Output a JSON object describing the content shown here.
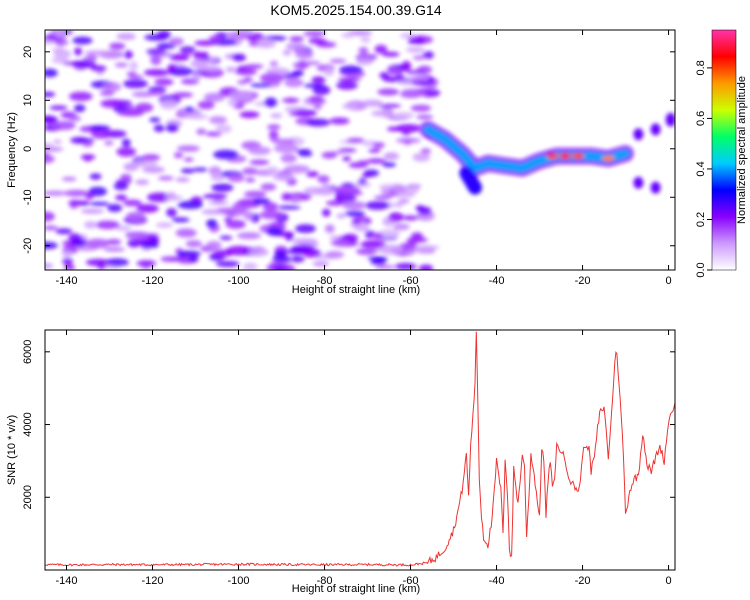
{
  "title": "KOM5.2025.154.00.39.G14",
  "chart_data": [
    {
      "type": "heatmap",
      "xlabel": "Height of straight line (km)",
      "ylabel": "Frequency (Hz)",
      "xlim": [
        -145,
        1.5
      ],
      "ylim": [
        -25,
        24.5
      ],
      "xticks": [
        -140,
        -120,
        -100,
        -80,
        -60,
        -40,
        -20,
        0
      ],
      "yticks": [
        -20,
        -10,
        0,
        10,
        20
      ],
      "colorbar": {
        "label": "Normalized spectral amplitude",
        "range": [
          0,
          0.95
        ],
        "ticks": [
          "0.0",
          "0.2",
          "0.4",
          "0.6",
          "0.8"
        ],
        "colors": [
          "#ffffff",
          "#cc99ff",
          "#8800ff",
          "#0000ff",
          "#00ccff",
          "#00ff66",
          "#ccff00",
          "#ff9900",
          "#ff0000",
          "#ff33aa"
        ]
      },
      "features": {
        "noise_region_x": [
          -145,
          -55
        ],
        "signal_track": [
          {
            "x": -56,
            "f": 4
          },
          {
            "x": -52,
            "f": 2
          },
          {
            "x": -48,
            "f": -1
          },
          {
            "x": -45,
            "f": -4
          },
          {
            "x": -42,
            "f": -3
          },
          {
            "x": -38,
            "f": -3.5
          },
          {
            "x": -34,
            "f": -4
          },
          {
            "x": -30,
            "f": -2.5
          },
          {
            "x": -26,
            "f": -1.5
          },
          {
            "x": -22,
            "f": -1.5
          },
          {
            "x": -18,
            "f": -1.5
          },
          {
            "x": -14,
            "f": -2
          },
          {
            "x": -10,
            "f": -1
          }
        ],
        "signal_branch": [
          {
            "x": -47,
            "f": -5
          },
          {
            "x": -45,
            "f": -8
          }
        ],
        "hot_spots": [
          {
            "x": -27,
            "f": -1.5,
            "amp": 0.85
          },
          {
            "x": -24,
            "f": -1.5,
            "amp": 0.9
          },
          {
            "x": -21,
            "f": -1.5,
            "amp": 0.85
          },
          {
            "x": -14,
            "f": -2,
            "amp": 0.8
          }
        ]
      }
    },
    {
      "type": "line",
      "xlabel": "Height of straight line (km)",
      "ylabel": "SNR (10 * v/v)",
      "xlim": [
        -145,
        1.5
      ],
      "ylim": [
        0,
        6600
      ],
      "xticks": [
        -140,
        -120,
        -100,
        -80,
        -60,
        -40,
        -20,
        0
      ],
      "yticks": [
        2000,
        4000,
        6000
      ],
      "series": [
        {
          "color": "#ee3333",
          "x": [
            -145,
            -140,
            -130,
            -120,
            -110,
            -100,
            -90,
            -80,
            -70,
            -60,
            -56,
            -54,
            -52,
            -50,
            -49,
            -48,
            -47,
            -46.5,
            -46,
            -45.5,
            -45,
            -44.7,
            -44.5,
            -44,
            -43.5,
            -43,
            -42,
            -41,
            -40,
            -39,
            -38.5,
            -38,
            -37.5,
            -37,
            -36.5,
            -36,
            -35,
            -34,
            -33.5,
            -33,
            -32.5,
            -32,
            -31,
            -30,
            -29.5,
            -29,
            -28.5,
            -28,
            -27.5,
            -27,
            -26.5,
            -26,
            -25,
            -24,
            -23,
            -22,
            -21,
            -20.5,
            -20,
            -19,
            -18.5,
            -18,
            -17,
            -16.5,
            -16,
            -15,
            -14,
            -13,
            -12.5,
            -12,
            -11,
            -10.5,
            -10,
            -9,
            -8,
            -7,
            -6,
            -5,
            -4,
            -3,
            -2,
            -1,
            0,
            1.5
          ],
          "values": [
            150,
            140,
            150,
            145,
            150,
            160,
            150,
            145,
            150,
            140,
            200,
            350,
            600,
            1100,
            1600,
            2200,
            3200,
            2000,
            3500,
            4200,
            5200,
            6550,
            5500,
            2500,
            1500,
            900,
            700,
            1400,
            3000,
            2200,
            1000,
            3100,
            2200,
            600,
            300,
            2800,
            1800,
            3200,
            2800,
            900,
            2000,
            3200,
            2400,
            1400,
            3400,
            3000,
            1500,
            2500,
            3000,
            2200,
            2600,
            3400,
            3300,
            3000,
            2500,
            2300,
            2200,
            2400,
            3200,
            3500,
            3300,
            2700,
            3300,
            3900,
            4300,
            4500,
            3100,
            4700,
            5800,
            6000,
            4200,
            3200,
            1500,
            2200,
            2500,
            2600,
            3800,
            2900,
            2700,
            3100,
            3400,
            3000,
            4100,
            4600
          ]
        }
      ]
    }
  ]
}
